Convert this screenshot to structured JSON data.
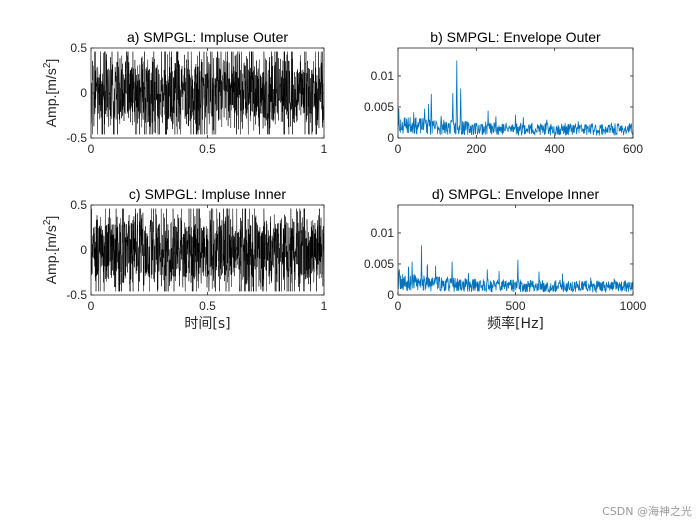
{
  "watermark": "CSDN @海神之光",
  "chart_data": [
    {
      "type": "line",
      "title": "a) SMPGL: Impluse Outer",
      "xlabel": "",
      "ylabel": "Amp.[m/s",
      "ylabel_sup": "2",
      "ylabel_end": "]",
      "xlim": [
        0,
        1
      ],
      "ylim": [
        -0.5,
        0.5
      ],
      "xticks": [
        0,
        0.5,
        1
      ],
      "xticklabels": [
        "0",
        "0.5",
        "1"
      ],
      "yticks": [
        -0.5,
        0,
        0.5
      ],
      "yticklabels": [
        "-0.5",
        "0",
        "0.5"
      ],
      "color": "#000000",
      "signal": {
        "kind": "noise",
        "n": 1400,
        "amplitude": 0.46,
        "seed": 11
      }
    },
    {
      "type": "line",
      "title": "b) SMPGL: Envelope Outer",
      "xlabel": "",
      "ylabel": "",
      "xlim": [
        0,
        600
      ],
      "ylim": [
        0,
        0.0145
      ],
      "xticks": [
        0,
        200,
        400,
        600
      ],
      "xticklabels": [
        "0",
        "200",
        "400",
        "600"
      ],
      "yticks": [
        0,
        0.005,
        0.01
      ],
      "yticklabels": [
        "0",
        "0.005",
        "0.01"
      ],
      "color": "#0072BD",
      "signal": {
        "kind": "spectrum",
        "n": 600,
        "baseline": 0.0016,
        "seed": 23
      },
      "peaks": [
        {
          "x": 2,
          "y": 0.0049
        },
        {
          "x": 18,
          "y": 0.0038
        },
        {
          "x": 40,
          "y": 0.0045
        },
        {
          "x": 68,
          "y": 0.0055
        },
        {
          "x": 78,
          "y": 0.0062
        },
        {
          "x": 85,
          "y": 0.0078
        },
        {
          "x": 110,
          "y": 0.004
        },
        {
          "x": 140,
          "y": 0.0078
        },
        {
          "x": 150,
          "y": 0.0145
        },
        {
          "x": 160,
          "y": 0.0082
        },
        {
          "x": 230,
          "y": 0.0045
        },
        {
          "x": 250,
          "y": 0.0038
        },
        {
          "x": 300,
          "y": 0.0042
        },
        {
          "x": 320,
          "y": 0.0035
        },
        {
          "x": 380,
          "y": 0.003
        },
        {
          "x": 460,
          "y": 0.003
        }
      ]
    },
    {
      "type": "line",
      "title": "c) SMPGL: Impluse Inner",
      "xlabel": "时间[s]",
      "ylabel": "Amp.[m/s",
      "ylabel_sup": "2",
      "ylabel_end": "]",
      "xlim": [
        0,
        1
      ],
      "ylim": [
        -0.5,
        0.5
      ],
      "xticks": [
        0,
        0.5,
        1
      ],
      "xticklabels": [
        "0",
        "0.5",
        "1"
      ],
      "yticks": [
        -0.5,
        0,
        0.5
      ],
      "yticklabels": [
        "-0.5",
        "0",
        "0.5"
      ],
      "color": "#000000",
      "signal": {
        "kind": "noise",
        "n": 1400,
        "amplitude": 0.46,
        "seed": 37
      }
    },
    {
      "type": "line",
      "title": "d) SMPGL: Envelope Inner",
      "xlabel": "频率[Hz]",
      "ylabel": "",
      "xlim": [
        0,
        1000
      ],
      "ylim": [
        0,
        0.0145
      ],
      "xticks": [
        0,
        500,
        1000
      ],
      "xticklabels": [
        "0",
        "500",
        "1000"
      ],
      "yticks": [
        0,
        0.005,
        0.01
      ],
      "yticklabels": [
        "0",
        "0.005",
        "0.01"
      ],
      "color": "#0072BD",
      "signal": {
        "kind": "spectrum",
        "n": 700,
        "baseline": 0.0016,
        "seed": 53
      },
      "peaks": [
        {
          "x": 5,
          "y": 0.0052
        },
        {
          "x": 45,
          "y": 0.006
        },
        {
          "x": 60,
          "y": 0.0062
        },
        {
          "x": 100,
          "y": 0.009
        },
        {
          "x": 125,
          "y": 0.0065
        },
        {
          "x": 160,
          "y": 0.0048
        },
        {
          "x": 230,
          "y": 0.0055
        },
        {
          "x": 300,
          "y": 0.004
        },
        {
          "x": 380,
          "y": 0.0045
        },
        {
          "x": 430,
          "y": 0.004
        },
        {
          "x": 510,
          "y": 0.0062
        },
        {
          "x": 600,
          "y": 0.004
        },
        {
          "x": 700,
          "y": 0.0035
        },
        {
          "x": 820,
          "y": 0.003
        },
        {
          "x": 920,
          "y": 0.0028
        }
      ]
    }
  ]
}
